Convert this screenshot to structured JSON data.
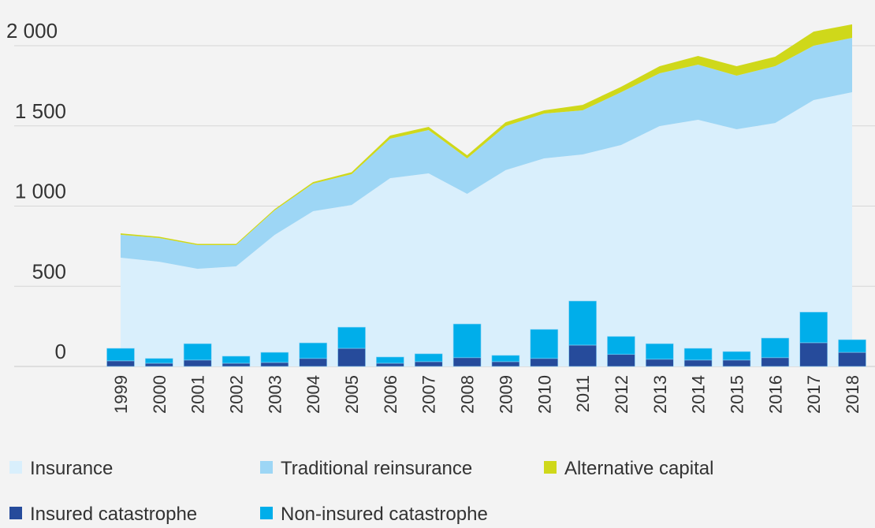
{
  "chart_data": {
    "type": "area+bar",
    "title": "",
    "xlabel": "",
    "ylabel": "",
    "ylim": [
      0,
      2000
    ],
    "yticks": [
      0,
      500,
      1000,
      1500,
      2000
    ],
    "ytick_labels": [
      "0",
      "500",
      "1 000",
      "1 500",
      "2 000"
    ],
    "grid": true,
    "legend_position": "bottom",
    "categories": [
      "1999",
      "2000",
      "2001",
      "2002",
      "2003",
      "2004",
      "2005",
      "2006",
      "2007",
      "2008",
      "2009",
      "2010",
      "2011",
      "2012",
      "2013",
      "2014",
      "2015",
      "2016",
      "2017",
      "2018"
    ],
    "stacked_areas": [
      {
        "name": "Insurance",
        "color": "#d9effc",
        "values": [
          678,
          653,
          609,
          624,
          820,
          968,
          1007,
          1174,
          1204,
          1076,
          1224,
          1297,
          1322,
          1381,
          1499,
          1538,
          1479,
          1518,
          1661,
          1710
        ]
      },
      {
        "name": "Traditional reinsurance",
        "color": "#9dd6f5",
        "values": [
          143,
          148,
          148,
          133,
          153,
          172,
          192,
          246,
          270,
          221,
          275,
          280,
          275,
          329,
          329,
          344,
          334,
          354,
          339,
          339
        ]
      },
      {
        "name": "Alternative capital",
        "color": "#cfd81a",
        "values": [
          9,
          8,
          7,
          7,
          8,
          10,
          12,
          20,
          20,
          20,
          24,
          20,
          34,
          34,
          44,
          54,
          59,
          59,
          88,
          84
        ]
      }
    ],
    "stacked_bars": [
      {
        "name": "Insured catastrophe",
        "color": "#264b9b",
        "values": [
          35,
          20,
          40,
          20,
          25,
          50,
          113,
          20,
          30,
          55,
          30,
          50,
          133,
          75,
          45,
          40,
          40,
          55,
          148,
          88
        ]
      },
      {
        "name": "Non-insured catastrophe",
        "color": "#00aeea",
        "values": [
          78,
          30,
          102,
          44,
          63,
          97,
          132,
          39,
          49,
          210,
          39,
          181,
          275,
          112,
          97,
          73,
          53,
          122,
          191,
          79
        ]
      }
    ]
  },
  "legend": [
    {
      "label": "Insurance",
      "color": "#d9effc"
    },
    {
      "label": "Traditional reinsurance",
      "color": "#9dd6f5"
    },
    {
      "label": "Alternative capital",
      "color": "#cfd81a"
    },
    {
      "label": "Insured catastrophe",
      "color": "#264b9b"
    },
    {
      "label": "Non-insured catastrophe",
      "color": "#00aeea"
    }
  ]
}
